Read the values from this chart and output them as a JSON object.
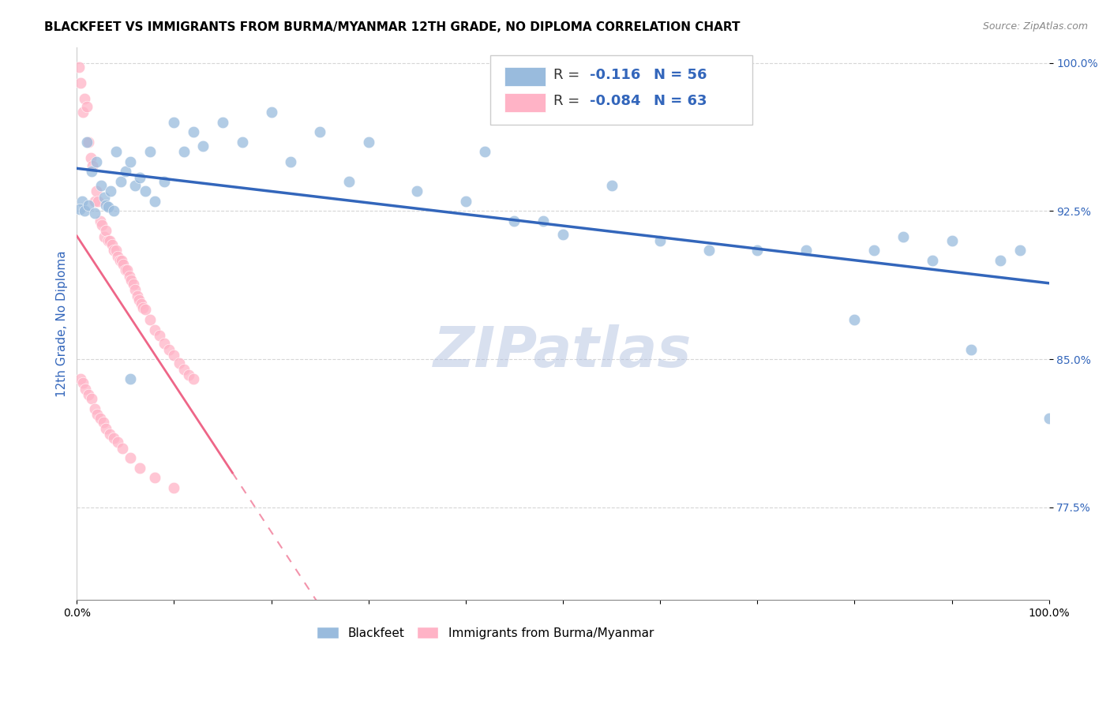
{
  "title": "BLACKFEET VS IMMIGRANTS FROM BURMA/MYANMAR 12TH GRADE, NO DIPLOMA CORRELATION CHART",
  "source": "Source: ZipAtlas.com",
  "ylabel": "12th Grade, No Diploma",
  "watermark": "ZIPatlas",
  "xmin": 0.0,
  "xmax": 1.0,
  "ymin": 0.728,
  "ymax": 1.008,
  "yticks": [
    0.775,
    0.85,
    0.925,
    1.0
  ],
  "ytick_labels": [
    "77.5%",
    "85.0%",
    "92.5%",
    "100.0%"
  ],
  "xticks": [
    0.0,
    0.1,
    0.2,
    0.3,
    0.4,
    0.5,
    0.6,
    0.7,
    0.8,
    0.9,
    1.0
  ],
  "xtick_labels": [
    "0.0%",
    "",
    "",
    "",
    "",
    "",
    "",
    "",
    "",
    "",
    "100.0%"
  ],
  "legend_blue_r_val": "-0.116",
  "legend_blue_n": "N = 56",
  "legend_pink_r_val": "-0.084",
  "legend_pink_n": "N = 63",
  "blue_color": "#99BBDD",
  "pink_color": "#FFB3C6",
  "trend_blue_color": "#3366BB",
  "trend_pink_color": "#EE6688",
  "blue_x": [
    0.005,
    0.01,
    0.015,
    0.02,
    0.025,
    0.028,
    0.03,
    0.035,
    0.04,
    0.045,
    0.05,
    0.055,
    0.06,
    0.065,
    0.07,
    0.075,
    0.08,
    0.09,
    0.1,
    0.11,
    0.12,
    0.13,
    0.15,
    0.17,
    0.2,
    0.22,
    0.25,
    0.28,
    0.3,
    0.35,
    0.4,
    0.42,
    0.45,
    0.48,
    0.5,
    0.55,
    0.6,
    0.65,
    0.7,
    0.75,
    0.8,
    0.82,
    0.85,
    0.88,
    0.9,
    0.92,
    0.95,
    0.97,
    1.0,
    0.003,
    0.008,
    0.012,
    0.018,
    0.032,
    0.038,
    0.055
  ],
  "blue_y": [
    0.93,
    0.96,
    0.945,
    0.95,
    0.938,
    0.932,
    0.928,
    0.935,
    0.955,
    0.94,
    0.945,
    0.95,
    0.938,
    0.942,
    0.935,
    0.955,
    0.93,
    0.94,
    0.97,
    0.955,
    0.965,
    0.958,
    0.97,
    0.96,
    0.975,
    0.95,
    0.965,
    0.94,
    0.96,
    0.935,
    0.93,
    0.955,
    0.92,
    0.92,
    0.913,
    0.938,
    0.91,
    0.905,
    0.905,
    0.905,
    0.87,
    0.905,
    0.912,
    0.9,
    0.91,
    0.855,
    0.9,
    0.905,
    0.82,
    0.926,
    0.925,
    0.928,
    0.924,
    0.927,
    0.925,
    0.84
  ],
  "pink_x": [
    0.002,
    0.004,
    0.006,
    0.008,
    0.01,
    0.012,
    0.014,
    0.016,
    0.018,
    0.02,
    0.022,
    0.024,
    0.026,
    0.028,
    0.03,
    0.032,
    0.034,
    0.036,
    0.038,
    0.04,
    0.042,
    0.044,
    0.046,
    0.048,
    0.05,
    0.052,
    0.054,
    0.056,
    0.058,
    0.06,
    0.062,
    0.064,
    0.066,
    0.068,
    0.07,
    0.075,
    0.08,
    0.085,
    0.09,
    0.095,
    0.1,
    0.105,
    0.11,
    0.115,
    0.12,
    0.004,
    0.006,
    0.009,
    0.012,
    0.015,
    0.018,
    0.021,
    0.024,
    0.027,
    0.03,
    0.034,
    0.038,
    0.042,
    0.047,
    0.055,
    0.065,
    0.08,
    0.1
  ],
  "pink_y": [
    0.998,
    0.99,
    0.975,
    0.982,
    0.978,
    0.96,
    0.952,
    0.948,
    0.93,
    0.935,
    0.93,
    0.92,
    0.918,
    0.912,
    0.915,
    0.91,
    0.91,
    0.908,
    0.905,
    0.905,
    0.902,
    0.9,
    0.9,
    0.898,
    0.895,
    0.895,
    0.892,
    0.89,
    0.888,
    0.885,
    0.882,
    0.88,
    0.878,
    0.876,
    0.875,
    0.87,
    0.865,
    0.862,
    0.858,
    0.855,
    0.852,
    0.848,
    0.845,
    0.842,
    0.84,
    0.84,
    0.838,
    0.835,
    0.832,
    0.83,
    0.825,
    0.822,
    0.82,
    0.818,
    0.815,
    0.812,
    0.81,
    0.808,
    0.805,
    0.8,
    0.795,
    0.79,
    0.785
  ],
  "title_fontsize": 11,
  "axis_label_fontsize": 11,
  "tick_fontsize": 10,
  "watermark_fontsize": 52,
  "source_fontsize": 9,
  "pink_trend_xmax": 0.16
}
